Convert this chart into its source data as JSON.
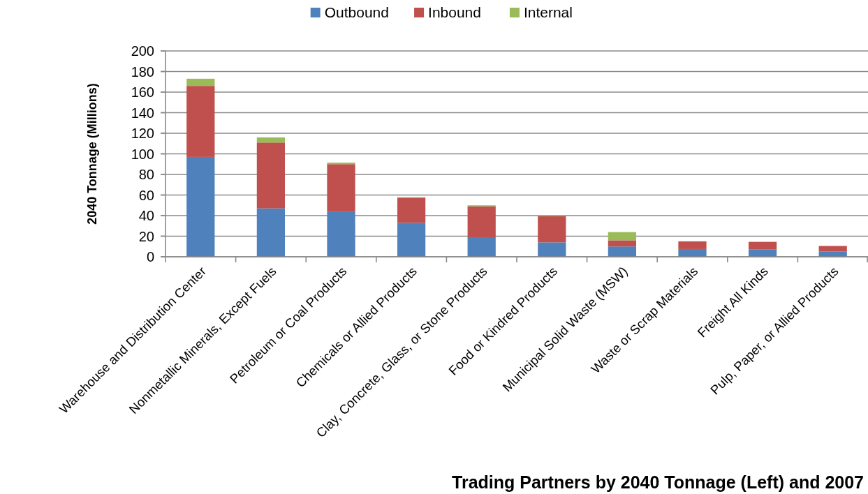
{
  "chart_data": {
    "type": "bar",
    "stacked": true,
    "title": "Trading Partners by 2040 Tonnage (Left) and 2007",
    "ylabel": "2040 Tonnage (Millions)",
    "categories": [
      "Warehouse and Distribution Center",
      "Nonmetallic Minerals, Except Fuels",
      "Petroleum or Coal Products",
      "Chemicals or Allied Products",
      "Clay, Concrete, Glass, or Stone Products",
      "Food or Kindred Products",
      "Municipal Solid Waste (MSW)",
      "Waste or Scrap Materials",
      "Freight All Kinds",
      "Pulp, Paper, or Allied Products"
    ],
    "series": [
      {
        "name": "Outbound",
        "color": "#4f81bd",
        "values": [
          97,
          47,
          44,
          33,
          19,
          14,
          10,
          7.5,
          7,
          5
        ]
      },
      {
        "name": "Inbound",
        "color": "#c0504d",
        "values": [
          69,
          64,
          46,
          24,
          30,
          25.5,
          6,
          7.5,
          7.5,
          5.5
        ]
      },
      {
        "name": "Internal",
        "color": "#9bbb59",
        "values": [
          7,
          5,
          1.5,
          1,
          1,
          1,
          8,
          null,
          null,
          null
        ]
      }
    ],
    "ylim": [
      0,
      200
    ],
    "yticks": [
      0,
      20,
      40,
      60,
      80,
      100,
      120,
      140,
      160,
      180,
      200
    ],
    "grid": "y",
    "legend": "top"
  }
}
